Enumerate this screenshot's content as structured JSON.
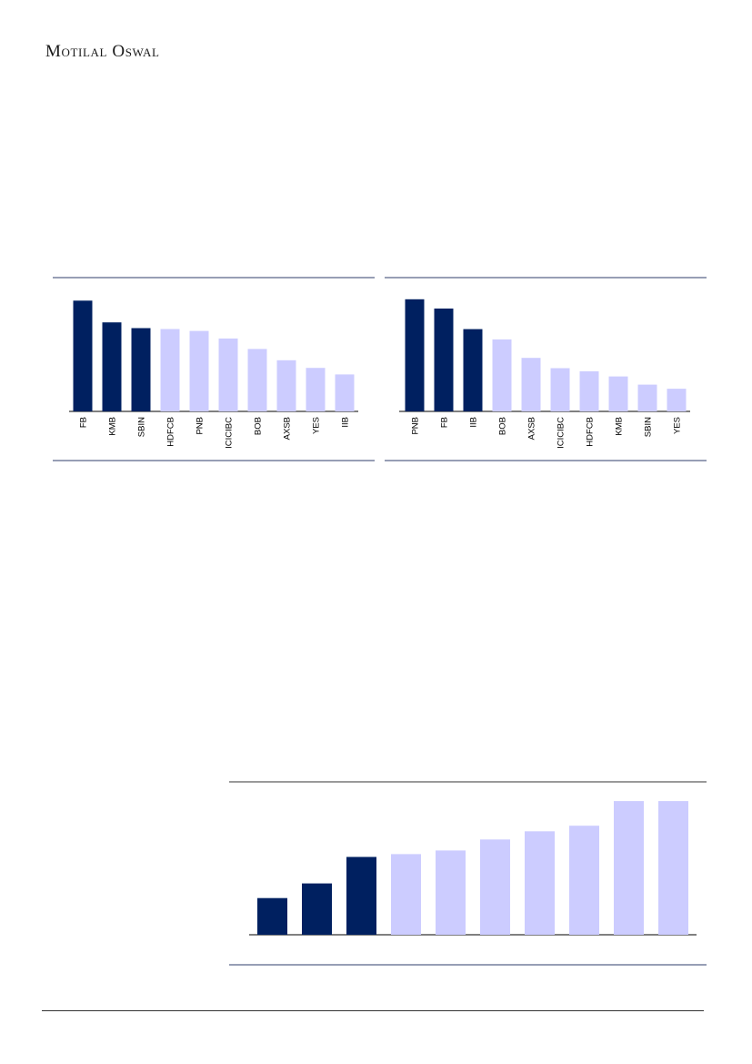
{
  "header": {
    "brand": "Motilal Oswal"
  },
  "colors": {
    "highlight": "#002060",
    "base": "#ccccff",
    "frame": "#2f3e6b"
  },
  "chart_data": [
    {
      "type": "bar",
      "categories": [
        "FB",
        "KMB",
        "SBIN",
        "HDFCB",
        "PNB",
        "ICICIBC",
        "BOB",
        "AXSB",
        "YES",
        "IIB"
      ],
      "values": [
        11.7,
        9.4,
        8.8,
        8.7,
        8.5,
        7.7,
        6.6,
        5.4,
        4.6,
        3.9
      ],
      "highlight_count": 3,
      "ylim": [
        0,
        12.5
      ],
      "grid": false
    },
    {
      "type": "bar",
      "categories": [
        "PNB",
        "FB",
        "IIB",
        "BOB",
        "AXSB",
        "ICICIBC",
        "HDFCB",
        "KMB",
        "SBIN",
        "YES"
      ],
      "values": [
        10.9,
        10.0,
        8.0,
        7.0,
        5.2,
        4.2,
        3.9,
        3.4,
        2.6,
        2.2
      ],
      "highlight_count": 3,
      "ylim": [
        0,
        11.5
      ],
      "grid": false
    },
    {
      "type": "bar",
      "categories": [
        "",
        "",
        "",
        "",
        "",
        "",
        "",
        "",
        "",
        ""
      ],
      "values": [
        4.0,
        5.6,
        8.5,
        8.8,
        9.2,
        10.4,
        11.3,
        11.9,
        14.6,
        14.6
      ],
      "highlight_count": 3,
      "ylim": [
        0,
        15.5
      ],
      "grid": false
    }
  ]
}
